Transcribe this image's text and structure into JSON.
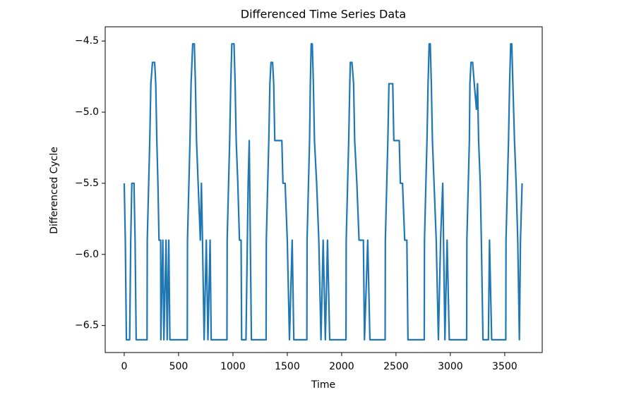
{
  "chart_data": {
    "type": "line",
    "title": "Differenced Time Series Data",
    "xlabel": "Time",
    "ylabel": "Differenced Cycle",
    "color": "#1f77b4",
    "x": [
      0,
      10,
      20,
      50,
      60,
      70,
      90,
      100,
      110,
      210,
      212,
      225,
      235,
      245,
      260,
      280,
      290,
      300,
      310,
      320,
      335,
      337,
      355,
      365,
      385,
      395,
      410,
      420,
      490,
      580,
      582,
      595,
      605,
      615,
      630,
      645,
      655,
      665,
      680,
      700,
      710,
      720,
      735,
      755,
      770,
      790,
      800,
      945,
      947,
      960,
      970,
      980,
      990,
      1010,
      1020,
      1030,
      1045,
      1060,
      1075,
      1080,
      1120,
      1140,
      1150,
      1160,
      1170,
      1305,
      1307,
      1320,
      1330,
      1340,
      1350,
      1365,
      1375,
      1385,
      1450,
      1460,
      1480,
      1500,
      1520,
      1545,
      1560,
      1680,
      1682,
      1695,
      1705,
      1712,
      1720,
      1730,
      1740,
      1750,
      1770,
      1790,
      1810,
      1830,
      1850,
      1870,
      1890,
      2040,
      2042,
      2055,
      2065,
      2075,
      2080,
      2095,
      2110,
      2120,
      2140,
      2160,
      2200,
      2210,
      2240,
      2260,
      2400,
      2402,
      2415,
      2425,
      2435,
      2470,
      2480,
      2530,
      2540,
      2560,
      2580,
      2600,
      2610,
      2760,
      2762,
      2775,
      2785,
      2795,
      2805,
      2815,
      2825,
      2835,
      2850,
      2870,
      2890,
      2910,
      2930,
      2950,
      2970,
      2990,
      3150,
      3152,
      3165,
      3175,
      3180,
      3190,
      3205,
      3220,
      3240,
      3250,
      3260,
      3275,
      3285,
      3300,
      3350,
      3360,
      3380,
      3510,
      3512,
      3525,
      3535,
      3545,
      3555,
      3565,
      3575,
      3590,
      3605,
      3620,
      3635,
      3645,
      3660
    ],
    "values": [
      -5.5,
      -5.9,
      -6.6,
      -6.6,
      -5.9,
      -5.5,
      -5.5,
      -5.9,
      -6.6,
      -6.6,
      -5.9,
      -5.5,
      -5.2,
      -4.8,
      -4.65,
      -4.65,
      -4.8,
      -5.2,
      -5.5,
      -5.9,
      -5.9,
      -6.6,
      -5.9,
      -6.6,
      -5.9,
      -6.6,
      -5.9,
      -6.6,
      -6.6,
      -6.6,
      -5.9,
      -5.5,
      -5.2,
      -4.8,
      -4.52,
      -4.52,
      -4.8,
      -5.2,
      -5.5,
      -5.9,
      -5.5,
      -5.9,
      -6.6,
      -5.9,
      -6.6,
      -5.9,
      -6.6,
      -6.6,
      -5.9,
      -5.5,
      -5.2,
      -4.8,
      -4.52,
      -4.52,
      -4.8,
      -5.2,
      -5.5,
      -5.9,
      -5.9,
      -6.6,
      -6.6,
      -5.5,
      -5.2,
      -5.9,
      -6.6,
      -6.6,
      -5.9,
      -5.5,
      -5.2,
      -4.8,
      -4.65,
      -4.65,
      -4.8,
      -5.2,
      -5.2,
      -5.5,
      -5.5,
      -5.9,
      -6.6,
      -5.9,
      -6.6,
      -6.6,
      -5.9,
      -5.5,
      -5.2,
      -4.8,
      -4.52,
      -4.52,
      -4.8,
      -5.2,
      -5.5,
      -5.9,
      -6.6,
      -5.9,
      -6.6,
      -5.9,
      -6.6,
      -6.6,
      -5.9,
      -5.5,
      -5.2,
      -4.8,
      -4.65,
      -4.65,
      -4.8,
      -5.2,
      -5.5,
      -5.9,
      -5.9,
      -6.6,
      -5.9,
      -6.6,
      -6.6,
      -5.9,
      -5.5,
      -5.2,
      -4.8,
      -4.8,
      -5.2,
      -5.2,
      -5.5,
      -5.5,
      -5.9,
      -5.9,
      -6.6,
      -6.6,
      -5.9,
      -5.5,
      -5.2,
      -4.8,
      -4.52,
      -4.52,
      -4.8,
      -5.2,
      -5.5,
      -5.9,
      -6.6,
      -5.9,
      -5.5,
      -6.6,
      -5.9,
      -6.6,
      -6.6,
      -5.9,
      -5.5,
      -5.2,
      -4.8,
      -4.65,
      -4.65,
      -4.8,
      -4.98,
      -4.8,
      -5.2,
      -5.5,
      -5.9,
      -6.6,
      -6.6,
      -5.9,
      -6.6,
      -6.6,
      -5.9,
      -5.5,
      -5.2,
      -4.8,
      -4.52,
      -4.52,
      -4.8,
      -5.2,
      -5.5,
      -5.9,
      -6.6,
      -5.9,
      -5.5
    ],
    "xlim": [
      -175,
      3845
    ],
    "ylim": [
      -6.69,
      -4.4
    ],
    "xticks": [
      0,
      500,
      1000,
      1500,
      2000,
      2500,
      3000,
      3500
    ],
    "yticks": [
      {
        "value": -6.5,
        "label": "−6.5"
      },
      {
        "value": -6.0,
        "label": "−6.0"
      },
      {
        "value": -5.5,
        "label": "−5.5"
      },
      {
        "value": -5.0,
        "label": "−5.0"
      },
      {
        "value": -4.5,
        "label": "−4.5"
      }
    ],
    "grid": false
  }
}
